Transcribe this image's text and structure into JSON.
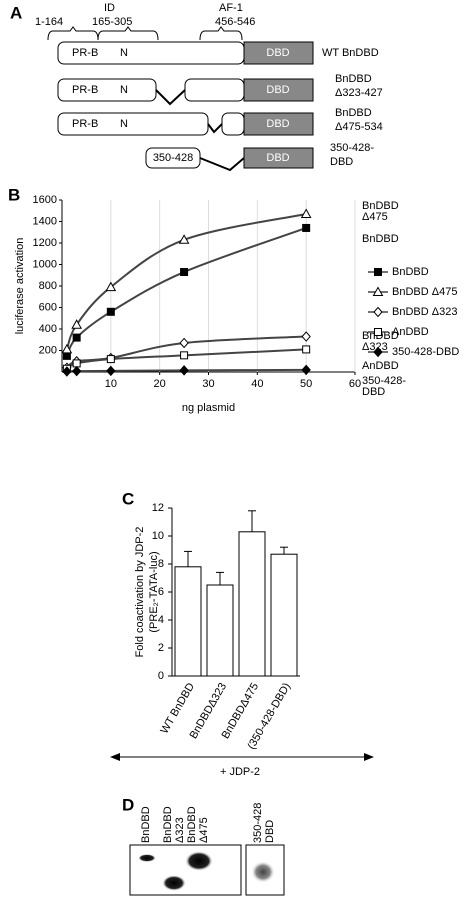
{
  "panel_labels": [
    "A",
    "B",
    "C",
    "D"
  ],
  "diagram": {
    "regions": [
      {
        "label": "1-164"
      },
      {
        "label": "ID",
        "sublabel": "165-305"
      },
      {
        "label": "AF-1",
        "sublabel": "456-546"
      }
    ],
    "constructs": [
      {
        "name": [
          "WT BnDBD"
        ],
        "segments": [
          "PR-B",
          "N",
          "DBD"
        ]
      },
      {
        "name": [
          "BnDBD",
          "Δ323-427"
        ],
        "segments": [
          "PR-B",
          "N",
          "DBD"
        ]
      },
      {
        "name": [
          "BnDBD",
          "Δ475-534"
        ],
        "segments": [
          "PR-B",
          "N",
          "DBD"
        ]
      },
      {
        "name": [
          "350-428-",
          "DBD"
        ],
        "segments": [
          "350-428",
          "DBD"
        ]
      }
    ]
  },
  "chart_data": [
    {
      "type": "line",
      "xlabel": "ng plasmid",
      "ylabel": "luciferase activation",
      "x": [
        1,
        3,
        10,
        25,
        50
      ],
      "xlim": [
        0,
        60
      ],
      "xticks": [
        10,
        20,
        30,
        40,
        50,
        60
      ],
      "ylim": [
        0,
        1600
      ],
      "yticks": [
        200,
        400,
        600,
        800,
        1000,
        1200,
        1400,
        1600
      ],
      "legend": "right",
      "series": [
        {
          "name": "BnDBD",
          "color": "#444444",
          "marker": "square",
          "marker_fill": "#000000",
          "values": [
            150,
            320,
            560,
            930,
            1340
          ],
          "end_label": [
            "BnDBD"
          ]
        },
        {
          "name": "BnDBD Δ475",
          "color": "#444444",
          "marker": "triangle",
          "marker_fill": "#ffffff",
          "values": [
            210,
            440,
            790,
            1230,
            1470
          ],
          "end_label": [
            "BnDBD",
            "Δ475"
          ]
        },
        {
          "name": "BnDBD Δ323",
          "color": "#444444",
          "marker": "diamond",
          "marker_fill": "#ffffff",
          "values": [
            40,
            100,
            130,
            270,
            330
          ],
          "end_label": [
            "BnDBD",
            "Δ323"
          ]
        },
        {
          "name": "AnDBD",
          "color": "#444444",
          "marker": "square",
          "marker_fill": "#ffffff",
          "values": [
            30,
            80,
            120,
            155,
            210
          ],
          "end_label": [
            "AnDBD"
          ]
        },
        {
          "name": "350-428-DBD",
          "color": "#444444",
          "marker": "diamond",
          "marker_fill": "#000000",
          "values": [
            5,
            8,
            10,
            15,
            20
          ],
          "end_label": [
            "350-428-",
            "DBD"
          ]
        }
      ]
    },
    {
      "type": "bar",
      "ylabel": [
        "Fold coactivation by JDP-2",
        "(PRE₂-TATA-luc)"
      ],
      "categories": [
        "WT BnDBD",
        "BnDBDΔ323",
        "BnDBDΔ475",
        "(350-428-DBD)"
      ],
      "values": [
        7.8,
        6.5,
        10.3,
        8.7
      ],
      "errors": [
        1.1,
        0.9,
        1.5,
        0.5
      ],
      "ylim": [
        0,
        12
      ],
      "yticks": [
        0,
        2,
        4,
        6,
        8,
        10,
        12
      ],
      "color": "#ffffff",
      "group_label": "+ JDP-2"
    }
  ],
  "gel": {
    "lanes": [
      [
        "BnDBD"
      ],
      [
        "BnDBD",
        "Δ323"
      ],
      [
        "BnDBD",
        "Δ475"
      ],
      [
        "350-428",
        "DBD"
      ]
    ]
  }
}
